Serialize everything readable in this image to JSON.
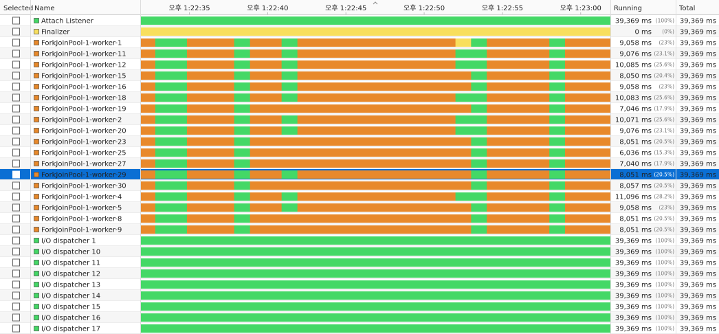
{
  "columns": {
    "selected": "Selected",
    "name": "Name",
    "running": "Running",
    "total": "Total"
  },
  "timeline": {
    "xlim": [
      0,
      30
    ],
    "ticks": [
      {
        "value": 3.1,
        "label": "오후 1:22:35"
      },
      {
        "value": 8.1,
        "label": "오후 1:22:40"
      },
      {
        "value": 13.1,
        "label": "오후 1:22:45"
      },
      {
        "value": 18.1,
        "label": "오후 1:22:50"
      },
      {
        "value": 23.1,
        "label": "오후 1:22:55"
      },
      {
        "value": 28.1,
        "label": "오후 1:23:00"
      }
    ],
    "span_color": "#44d866"
  },
  "rows": [
    {
      "name": "Attach Listener",
      "color": "#44d866",
      "spans": [],
      "running": "39,369 ms",
      "percent": "(100%)",
      "total": "39,369 ms"
    },
    {
      "name": "Finalizer",
      "color": "#f8df5e",
      "spans": [],
      "running": "0 ms",
      "percent": "(0%)",
      "total": "39,369 ms"
    },
    {
      "name": "ForkJoinPool-1-worker-1",
      "color": "#e8892b",
      "spans": [
        [
          0.92,
          2.94
        ],
        [
          5.96,
          6.97
        ],
        [
          8.99,
          10.0
        ],
        [
          20.1,
          21.1,
          "#f8df5e"
        ],
        [
          21.1,
          22.1
        ],
        [
          26.1,
          27.1
        ]
      ],
      "running": "9,058 ms",
      "percent": "(23%)",
      "total": "39,369 ms"
    },
    {
      "name": "ForkJoinPool-1-worker-11",
      "color": "#e8892b",
      "spans": [
        [
          0.92,
          2.94
        ],
        [
          5.96,
          6.97
        ],
        [
          8.99,
          10.0
        ],
        [
          20.1,
          22.1
        ],
        [
          26.1,
          27.1
        ]
      ],
      "running": "9,076 ms",
      "percent": "(23.1%)",
      "total": "39,369 ms"
    },
    {
      "name": "ForkJoinPool-1-worker-12",
      "color": "#e8892b",
      "spans": [
        [
          0.92,
          2.94
        ],
        [
          5.96,
          6.97
        ],
        [
          8.99,
          10.0
        ],
        [
          20.1,
          22.1
        ],
        [
          26.1,
          27.1
        ]
      ],
      "running": "10,085 ms",
      "percent": "(25.6%)",
      "total": "39,369 ms"
    },
    {
      "name": "ForkJoinPool-1-worker-15",
      "color": "#e8892b",
      "spans": [
        [
          0.92,
          2.94
        ],
        [
          5.96,
          6.97
        ],
        [
          8.99,
          10.0
        ],
        [
          21.1,
          22.1
        ],
        [
          26.1,
          27.1
        ]
      ],
      "running": "8,050 ms",
      "percent": "(20.4%)",
      "total": "39,369 ms"
    },
    {
      "name": "ForkJoinPool-1-worker-16",
      "color": "#e8892b",
      "spans": [
        [
          0.92,
          2.94
        ],
        [
          5.96,
          6.97
        ],
        [
          8.99,
          10.0
        ],
        [
          21.1,
          22.1
        ],
        [
          26.1,
          27.1
        ]
      ],
      "running": "9,058 ms",
      "percent": "(23%)",
      "total": "39,369 ms"
    },
    {
      "name": "ForkJoinPool-1-worker-18",
      "color": "#e8892b",
      "spans": [
        [
          0.92,
          2.94
        ],
        [
          5.96,
          6.97
        ],
        [
          8.99,
          10.0
        ],
        [
          20.1,
          22.1
        ],
        [
          26.1,
          27.1
        ]
      ],
      "running": "10,083 ms",
      "percent": "(25.6%)",
      "total": "39,369 ms"
    },
    {
      "name": "ForkJoinPool-1-worker-19",
      "color": "#e8892b",
      "spans": [
        [
          0.92,
          2.94
        ],
        [
          5.96,
          6.97
        ],
        [
          21.1,
          22.1
        ],
        [
          26.1,
          27.1
        ]
      ],
      "running": "7,046 ms",
      "percent": "(17.9%)",
      "total": "39,369 ms"
    },
    {
      "name": "ForkJoinPool-1-worker-2",
      "color": "#e8892b",
      "spans": [
        [
          0.92,
          2.94
        ],
        [
          5.96,
          6.97
        ],
        [
          8.99,
          10.0
        ],
        [
          20.1,
          22.1
        ],
        [
          26.1,
          27.1
        ]
      ],
      "running": "10,071 ms",
      "percent": "(25.6%)",
      "total": "39,369 ms"
    },
    {
      "name": "ForkJoinPool-1-worker-20",
      "color": "#e8892b",
      "spans": [
        [
          0.92,
          2.94
        ],
        [
          5.96,
          6.97
        ],
        [
          8.99,
          10.0
        ],
        [
          20.1,
          22.1
        ],
        [
          26.1,
          27.1
        ]
      ],
      "running": "9,076 ms",
      "percent": "(23.1%)",
      "total": "39,369 ms"
    },
    {
      "name": "ForkJoinPool-1-worker-23",
      "color": "#e8892b",
      "spans": [
        [
          0.92,
          2.94
        ],
        [
          5.96,
          6.97
        ],
        [
          21.1,
          22.1
        ],
        [
          26.1,
          27.1
        ]
      ],
      "running": "8,051 ms",
      "percent": "(20.5%)",
      "total": "39,369 ms"
    },
    {
      "name": "ForkJoinPool-1-worker-25",
      "color": "#e8892b",
      "spans": [
        [
          0.92,
          2.94
        ],
        [
          5.96,
          6.97
        ],
        [
          21.1,
          22.1
        ],
        [
          26.1,
          27.1
        ]
      ],
      "running": "6,036 ms",
      "percent": "(15.3%)",
      "total": "39,369 ms"
    },
    {
      "name": "ForkJoinPool-1-worker-27",
      "color": "#e8892b",
      "spans": [
        [
          0.92,
          2.94
        ],
        [
          5.96,
          6.97
        ],
        [
          21.1,
          22.1
        ],
        [
          26.1,
          27.1
        ]
      ],
      "running": "7,040 ms",
      "percent": "(17.9%)",
      "total": "39,369 ms"
    },
    {
      "name": "ForkJoinPool-1-worker-29",
      "color": "#e8892b",
      "spans": [
        [
          0.92,
          2.94
        ],
        [
          5.96,
          6.97
        ],
        [
          8.99,
          10.0
        ],
        [
          21.1,
          22.1
        ],
        [
          26.1,
          27.1
        ]
      ],
      "running": "8,051 ms",
      "percent": "(20.5%)",
      "total": "39,369 ms",
      "selected": true
    },
    {
      "name": "ForkJoinPool-1-worker-30",
      "color": "#e8892b",
      "spans": [
        [
          0.92,
          2.94
        ],
        [
          5.96,
          6.97
        ],
        [
          21.1,
          22.1
        ],
        [
          26.1,
          27.1
        ]
      ],
      "running": "8,057 ms",
      "percent": "(20.5%)",
      "total": "39,369 ms"
    },
    {
      "name": "ForkJoinPool-1-worker-4",
      "color": "#e8892b",
      "spans": [
        [
          0.92,
          2.94
        ],
        [
          5.96,
          6.97
        ],
        [
          8.99,
          10.0
        ],
        [
          20.1,
          22.1
        ],
        [
          26.1,
          27.1
        ]
      ],
      "running": "11,096 ms",
      "percent": "(28.2%)",
      "total": "39,369 ms"
    },
    {
      "name": "ForkJoinPool-1-worker-5",
      "color": "#e8892b",
      "spans": [
        [
          0.92,
          2.94
        ],
        [
          5.96,
          6.97
        ],
        [
          8.99,
          10.0
        ],
        [
          21.1,
          22.1
        ],
        [
          26.1,
          27.1
        ]
      ],
      "running": "9,058 ms",
      "percent": "(23%)",
      "total": "39,369 ms"
    },
    {
      "name": "ForkJoinPool-1-worker-8",
      "color": "#e8892b",
      "spans": [
        [
          0.92,
          2.94
        ],
        [
          5.96,
          6.97
        ],
        [
          21.1,
          22.1
        ],
        [
          26.1,
          27.1
        ]
      ],
      "running": "8,051 ms",
      "percent": "(20.5%)",
      "total": "39,369 ms"
    },
    {
      "name": "ForkJoinPool-1-worker-9",
      "color": "#e8892b",
      "spans": [
        [
          0.92,
          2.94
        ],
        [
          5.96,
          6.97
        ],
        [
          21.1,
          22.1
        ],
        [
          26.1,
          27.1
        ]
      ],
      "running": "8,051 ms",
      "percent": "(20.5%)",
      "total": "39,369 ms"
    },
    {
      "name": "I/O dispatcher 1",
      "color": "#44d866",
      "spans": [],
      "running": "39,369 ms",
      "percent": "(100%)",
      "total": "39,369 ms"
    },
    {
      "name": "I/O dispatcher 10",
      "color": "#44d866",
      "spans": [],
      "running": "39,369 ms",
      "percent": "(100%)",
      "total": "39,369 ms"
    },
    {
      "name": "I/O dispatcher 11",
      "color": "#44d866",
      "spans": [],
      "running": "39,369 ms",
      "percent": "(100%)",
      "total": "39,369 ms"
    },
    {
      "name": "I/O dispatcher 12",
      "color": "#44d866",
      "spans": [],
      "running": "39,369 ms",
      "percent": "(100%)",
      "total": "39,369 ms"
    },
    {
      "name": "I/O dispatcher 13",
      "color": "#44d866",
      "spans": [],
      "running": "39,369 ms",
      "percent": "(100%)",
      "total": "39,369 ms"
    },
    {
      "name": "I/O dispatcher 14",
      "color": "#44d866",
      "spans": [],
      "running": "39,369 ms",
      "percent": "(100%)",
      "total": "39,369 ms"
    },
    {
      "name": "I/O dispatcher 15",
      "color": "#44d866",
      "spans": [],
      "running": "39,369 ms",
      "percent": "(100%)",
      "total": "39,369 ms"
    },
    {
      "name": "I/O dispatcher 16",
      "color": "#44d866",
      "spans": [],
      "running": "39,369 ms",
      "percent": "(100%)",
      "total": "39,369 ms"
    },
    {
      "name": "I/O dispatcher 17",
      "color": "#44d866",
      "spans": [],
      "running": "39,369 ms",
      "percent": "(100%)",
      "total": "39,369 ms"
    }
  ]
}
